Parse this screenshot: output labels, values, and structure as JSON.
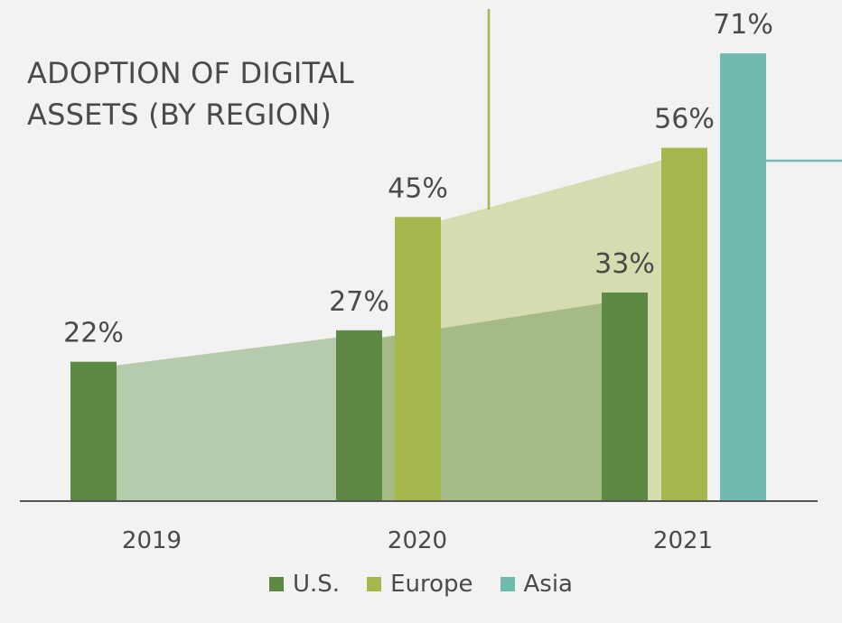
{
  "chart_data": {
    "type": "bar",
    "title_line1": "ADOPTION OF DIGITAL",
    "title_line2": "ASSETS (BY REGION)",
    "categories": [
      "2019",
      "2020",
      "2021"
    ],
    "series": [
      {
        "name": "U.S.",
        "color": "#5d8944",
        "values": [
          22,
          27,
          33
        ]
      },
      {
        "name": "Europe",
        "color": "#a6b74e",
        "values": [
          null,
          45,
          56
        ]
      },
      {
        "name": "Asia",
        "color": "#70bbae",
        "values": [
          null,
          null,
          71
        ]
      }
    ],
    "value_labels": {
      "us": [
        "22%",
        "27%",
        "33%"
      ],
      "europe": [
        "45%",
        "56%"
      ],
      "asia": [
        "71%"
      ]
    },
    "ylim": [
      0,
      80
    ],
    "area_colors": {
      "us": "#b5cbab",
      "us_dark": "#a5bb85",
      "europe": "#d5dcb0"
    },
    "accent_line_colors": {
      "europe": "#a6b74e",
      "asia": "#70bbae"
    },
    "legend_position": "bottom"
  }
}
